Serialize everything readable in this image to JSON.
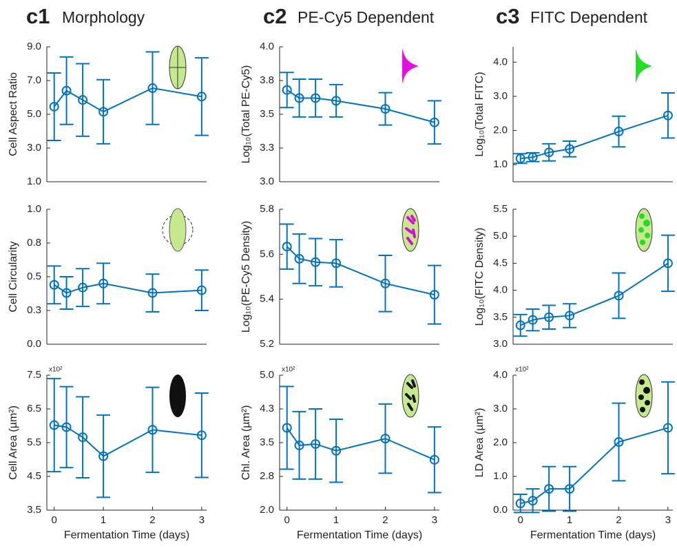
{
  "columns": [
    {
      "label": "c1",
      "title": "Morphology"
    },
    {
      "label": "c2",
      "title": "PE-Cy5 Dependent"
    },
    {
      "label": "c3",
      "title": "FITC Dependent"
    }
  ],
  "chart_data": [
    {
      "type": "line",
      "ylabel": "Cell Aspect Ratio",
      "x": [
        0,
        0.25,
        0.58,
        1,
        2,
        3
      ],
      "values": [
        5.45,
        6.4,
        5.85,
        5.15,
        6.55,
        6.05
      ],
      "errors": [
        2.0,
        2.0,
        2.15,
        1.9,
        2.15,
        2.3
      ],
      "color": "#0072bd",
      "xlim": [
        -0.15,
        3.1
      ],
      "ylim": [
        1,
        9
      ],
      "yticks": [
        {
          "value": 1,
          "label": "1.0"
        },
        {
          "value": 3,
          "label": "3.0"
        },
        {
          "value": 5,
          "label": "5.0"
        },
        {
          "value": 7,
          "label": "7.0"
        },
        {
          "value": 9,
          "label": "9.0"
        }
      ]
    },
    {
      "type": "line",
      "ylabel": "Log₁₀(Total PE-Cy5)",
      "x": [
        0,
        0.25,
        0.58,
        1,
        2,
        3
      ],
      "values": [
        3.68,
        3.62,
        3.62,
        3.6,
        3.54,
        3.44
      ],
      "errors": [
        0.13,
        0.14,
        0.14,
        0.12,
        0.12,
        0.16
      ],
      "color": "#0072bd",
      "xlim": [
        -0.15,
        3.1
      ],
      "ylim": [
        3,
        4
      ],
      "yticks": [
        {
          "value": 3,
          "label": "3.0"
        },
        {
          "value": 3.25,
          "label": "3.3"
        },
        3.5,
        {
          "value": 3.75,
          "label": "3.8"
        },
        {
          "value": 4,
          "label": "4.0"
        }
      ]
    },
    {
      "type": "line",
      "ylabel": "Log₁₀(Total FITC)",
      "x": [
        0,
        0.25,
        0.58,
        1,
        2,
        3
      ],
      "values": [
        1.18,
        1.22,
        1.36,
        1.46,
        1.97,
        2.44
      ],
      "errors": [
        0.14,
        0.13,
        0.25,
        0.23,
        0.45,
        0.66
      ],
      "color": "#0072bd",
      "xlim": [
        -0.15,
        3.1
      ],
      "ylim": [
        0.5,
        4.45
      ],
      "yticks": [
        {
          "value": 1,
          "label": "1.0"
        },
        {
          "value": 2,
          "label": "2.0"
        },
        {
          "value": 3,
          "label": "3.0"
        },
        {
          "value": 4,
          "label": "4.0"
        }
      ]
    },
    {
      "type": "line",
      "ylabel": "Cell Circularity",
      "x": [
        0,
        0.25,
        0.58,
        1,
        2,
        3
      ],
      "values": [
        0.44,
        0.38,
        0.42,
        0.45,
        0.38,
        0.4
      ],
      "errors": [
        0.14,
        0.12,
        0.14,
        0.15,
        0.14,
        0.15
      ],
      "color": "#0072bd",
      "xlim": [
        -0.15,
        3.1
      ],
      "ylim": [
        0,
        1
      ],
      "yticks": [
        {
          "value": 0,
          "label": "0.0"
        },
        {
          "value": 0.25,
          "label": "0.3"
        },
        0.5,
        {
          "value": 0.75,
          "label": "0.8"
        },
        {
          "value": 1,
          "label": "1.0"
        }
      ]
    },
    {
      "type": "line",
      "ylabel": "Log₁₀(PE-Cy5 Density)",
      "x": [
        0,
        0.25,
        0.58,
        1,
        2,
        3
      ],
      "values": [
        5.634,
        5.58,
        5.565,
        5.56,
        5.47,
        5.42
      ],
      "errors": [
        0.1,
        0.11,
        0.105,
        0.105,
        0.125,
        0.13
      ],
      "color": "#0072bd",
      "xlim": [
        -0.15,
        3.1
      ],
      "ylim": [
        5.2,
        5.8
      ],
      "yticks": [
        5.2,
        5.4,
        5.6,
        5.8
      ]
    },
    {
      "type": "line",
      "ylabel": "Log₁₀(FITC Density)",
      "x": [
        0,
        0.25,
        0.58,
        1,
        2,
        3
      ],
      "values": [
        3.35,
        3.45,
        3.5,
        3.53,
        3.9,
        4.5
      ],
      "errors": [
        0.2,
        0.2,
        0.22,
        0.22,
        0.42,
        0.52
      ],
      "color": "#0072bd",
      "xlim": [
        -0.15,
        3.1
      ],
      "ylim": [
        3,
        5.5
      ],
      "yticks": [
        {
          "value": 3,
          "label": "3.0"
        },
        3.5,
        {
          "value": 4,
          "label": "4.0"
        },
        4.5,
        {
          "value": 5,
          "label": "5.0"
        },
        5.5
      ]
    },
    {
      "type": "line",
      "ylabel": "Cell Area (µm²)",
      "ymultiplier": "x10²",
      "xlabel": "Fermentation Time (days)",
      "x": [
        0,
        0.25,
        0.58,
        1,
        2,
        3
      ],
      "values": [
        6.02,
        5.96,
        5.66,
        5.1,
        5.88,
        5.72
      ],
      "errors": [
        1.38,
        1.2,
        1.2,
        1.22,
        1.26,
        1.25
      ],
      "color": "#0072bd",
      "xlim": [
        -0.15,
        3.1
      ],
      "ylim": [
        3.5,
        7.5
      ],
      "xticks": [
        0,
        1,
        2,
        3
      ],
      "yticks": [
        3.5,
        4.5,
        5.5,
        6.5,
        7.5
      ]
    },
    {
      "type": "line",
      "ylabel": "Chl. Area (µm²)",
      "ymultiplier": "x10²",
      "xlabel": "Fermentation Time (days)",
      "x": [
        0,
        0.25,
        0.58,
        1,
        2,
        3
      ],
      "values": [
        3.83,
        3.44,
        3.47,
        3.32,
        3.59,
        3.12
      ],
      "errors": [
        0.92,
        0.75,
        0.78,
        0.7,
        0.77,
        0.73
      ],
      "color": "#0072bd",
      "xlim": [
        -0.15,
        3.1
      ],
      "ylim": [
        2,
        5
      ],
      "xticks": [
        0,
        1,
        2,
        3
      ],
      "yticks": [
        {
          "value": 2,
          "label": "2.0"
        },
        {
          "value": 2.75,
          "label": "2.8"
        },
        3.5,
        {
          "value": 4.25,
          "label": "4.3"
        },
        {
          "value": 5,
          "label": "5.0"
        }
      ]
    },
    {
      "type": "line",
      "ylabel": "LD Area (µm²)",
      "ymultiplier": "x10²",
      "xlabel": "Fermentation Time (days)",
      "x": [
        0,
        0.25,
        0.58,
        1,
        2,
        3
      ],
      "values": [
        0.2,
        0.28,
        0.63,
        0.63,
        2.02,
        2.44
      ],
      "errors": [
        0.27,
        0.35,
        0.66,
        0.66,
        1.15,
        1.36
      ],
      "color": "#0072bd",
      "xlim": [
        -0.15,
        3.1
      ],
      "ylim": [
        0,
        4
      ],
      "xticks": [
        0,
        1,
        2,
        3
      ],
      "yticks": [
        {
          "value": 0,
          "label": "0.0"
        },
        {
          "value": 1,
          "label": "1.0"
        },
        {
          "value": 2,
          "label": "2.0"
        },
        {
          "value": 3,
          "label": "3.0"
        },
        {
          "value": 4,
          "label": "4.0"
        }
      ]
    }
  ]
}
